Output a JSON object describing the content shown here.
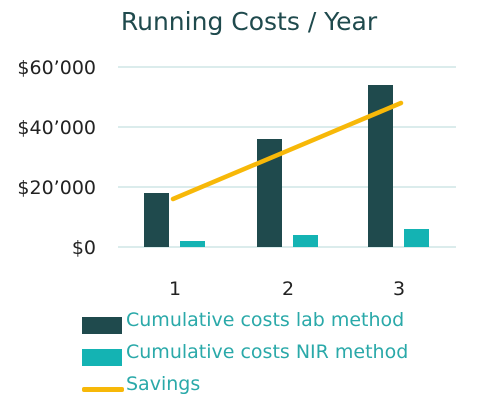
{
  "chart_data": {
    "type": "bar",
    "title": "Running Costs / Year",
    "xlabel": "",
    "ylabel": "",
    "categories": [
      "1",
      "2",
      "3"
    ],
    "ylim": [
      0,
      60000
    ],
    "yticks": [
      0,
      20000,
      40000,
      60000
    ],
    "ytick_labels": [
      "$0",
      "$20’000",
      "$40’000",
      "$60’000"
    ],
    "grid": true,
    "legend_position": "bottom-left",
    "series": [
      {
        "name": "Cumulative costs lab method",
        "type": "bar",
        "color": "#1f4a4d",
        "values": [
          18000,
          36000,
          54000
        ]
      },
      {
        "name": "Cumulative costs NIR method",
        "type": "bar",
        "color": "#14b3b3",
        "values": [
          2000,
          4000,
          6000
        ]
      },
      {
        "name": "Savings",
        "type": "line",
        "color": "#f7b808",
        "values": [
          16000,
          32000,
          48000
        ]
      }
    ]
  },
  "colors": {
    "title": "#1f4a4d",
    "tick_text": "#222222",
    "grid": "#cfe6e6",
    "legend_text": "#2aa9a9"
  }
}
